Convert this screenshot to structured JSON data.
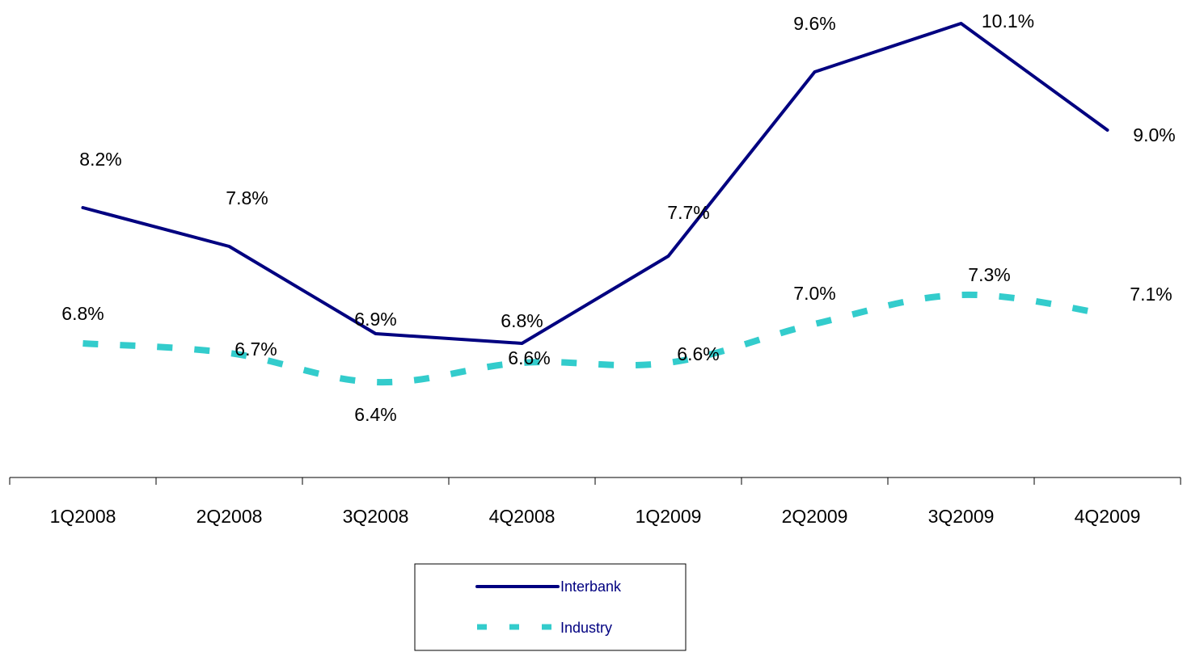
{
  "chart_data": {
    "type": "line",
    "categories": [
      "1Q2008",
      "2Q2008",
      "3Q2008",
      "4Q2008",
      "1Q2009",
      "2Q2009",
      "3Q2009",
      "4Q2009"
    ],
    "series": [
      {
        "name": "Interbank",
        "values": [
          8.2,
          7.8,
          6.9,
          6.8,
          7.7,
          9.6,
          10.1,
          9.0
        ],
        "labels": [
          "8.2%",
          "7.8%",
          "6.9%",
          "6.8%",
          "7.7%",
          "9.6%",
          "10.1%",
          "9.0%"
        ],
        "color": "#000080",
        "style": "solid"
      },
      {
        "name": "Industry",
        "values": [
          6.8,
          6.7,
          6.4,
          6.6,
          6.6,
          7.0,
          7.3,
          7.1
        ],
        "labels": [
          "6.8%",
          "6.7%",
          "6.4%",
          "6.6%",
          "6.6%",
          "7.0%",
          "7.3%",
          "7.1%"
        ],
        "color": "#33CCCC",
        "style": "dashed"
      }
    ],
    "title": "",
    "xlabel": "",
    "ylabel": "",
    "ylim": [
      5.0,
      10.3
    ],
    "grid": false,
    "legend": "bottom-center"
  }
}
